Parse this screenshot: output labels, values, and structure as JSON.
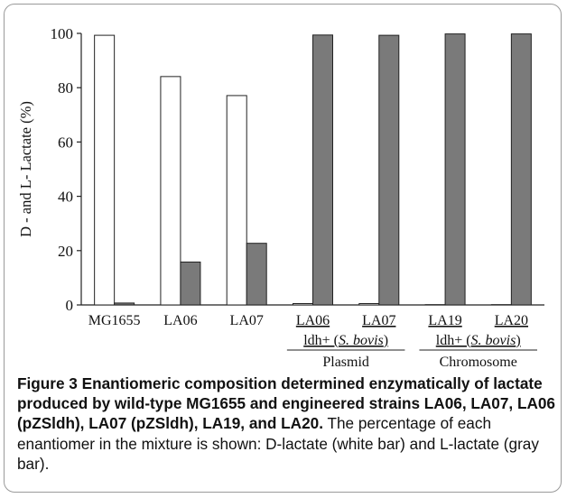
{
  "chart_data": {
    "type": "bar",
    "ylabel": "D - and L- Lactate (%)",
    "ylim": [
      0,
      100
    ],
    "yticks": [
      "0",
      "20",
      "40",
      "60",
      "80",
      "100"
    ],
    "categories": [
      "MG1655",
      "LA06",
      "LA07",
      "LA06",
      "LA07",
      "LA19",
      "LA20"
    ],
    "series": [
      {
        "values": [
          99.3,
          84.1,
          77.1,
          0.5,
          0.5,
          0.1,
          0.1
        ]
      },
      {
        "values": [
          0.7,
          15.8,
          22.7,
          99.4,
          99.3,
          99.8,
          99.8
        ]
      }
    ],
    "series_colors": [
      "#ffffff",
      "#7a7a7a"
    ],
    "groups": [
      {
        "label": "ldh+ (S. bovis)",
        "sublabel": "Plasmid"
      },
      {
        "label": "ldh+ (S. bovis)",
        "sublabel": "Chromosome"
      }
    ],
    "grid": false
  },
  "caption": {
    "title": "Figure 3 Enantiomeric composition determined enzymatically of lactate produced by wild-type MG1655 and engineered strains LA06, LA07, LA06 (pZSldh), LA07 (pZSldh), LA19, and LA20.",
    "body": " The percentage of each enantiomer in the mixture is shown: D-lactate (white bar) and L-lactate (gray bar)."
  }
}
